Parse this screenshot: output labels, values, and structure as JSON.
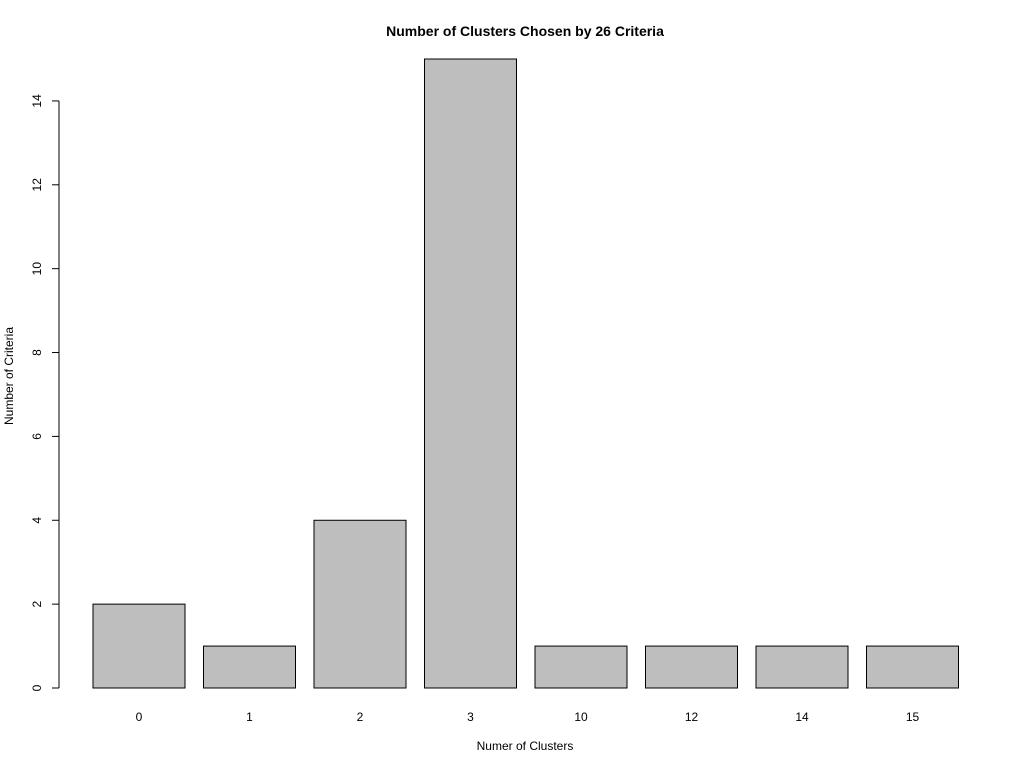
{
  "chart_data": {
    "type": "bar",
    "title": "Number of Clusters Chosen by 26 Criteria",
    "xlabel": "Numer of Clusters",
    "ylabel": "Number of Criteria",
    "categories": [
      "0",
      "1",
      "2",
      "3",
      "10",
      "12",
      "14",
      "15"
    ],
    "values": [
      2,
      1,
      4,
      15,
      1,
      1,
      1,
      1
    ],
    "ylim": [
      0,
      15
    ],
    "yticks": [
      0,
      2,
      4,
      6,
      8,
      10,
      12,
      14
    ],
    "ytick_labels": [
      "0",
      "2",
      "4",
      "6",
      "8",
      "10",
      "12",
      "14"
    ],
    "grid": false,
    "legend": "none",
    "bar_color": "#bebebe",
    "edge_color": "#000000"
  }
}
